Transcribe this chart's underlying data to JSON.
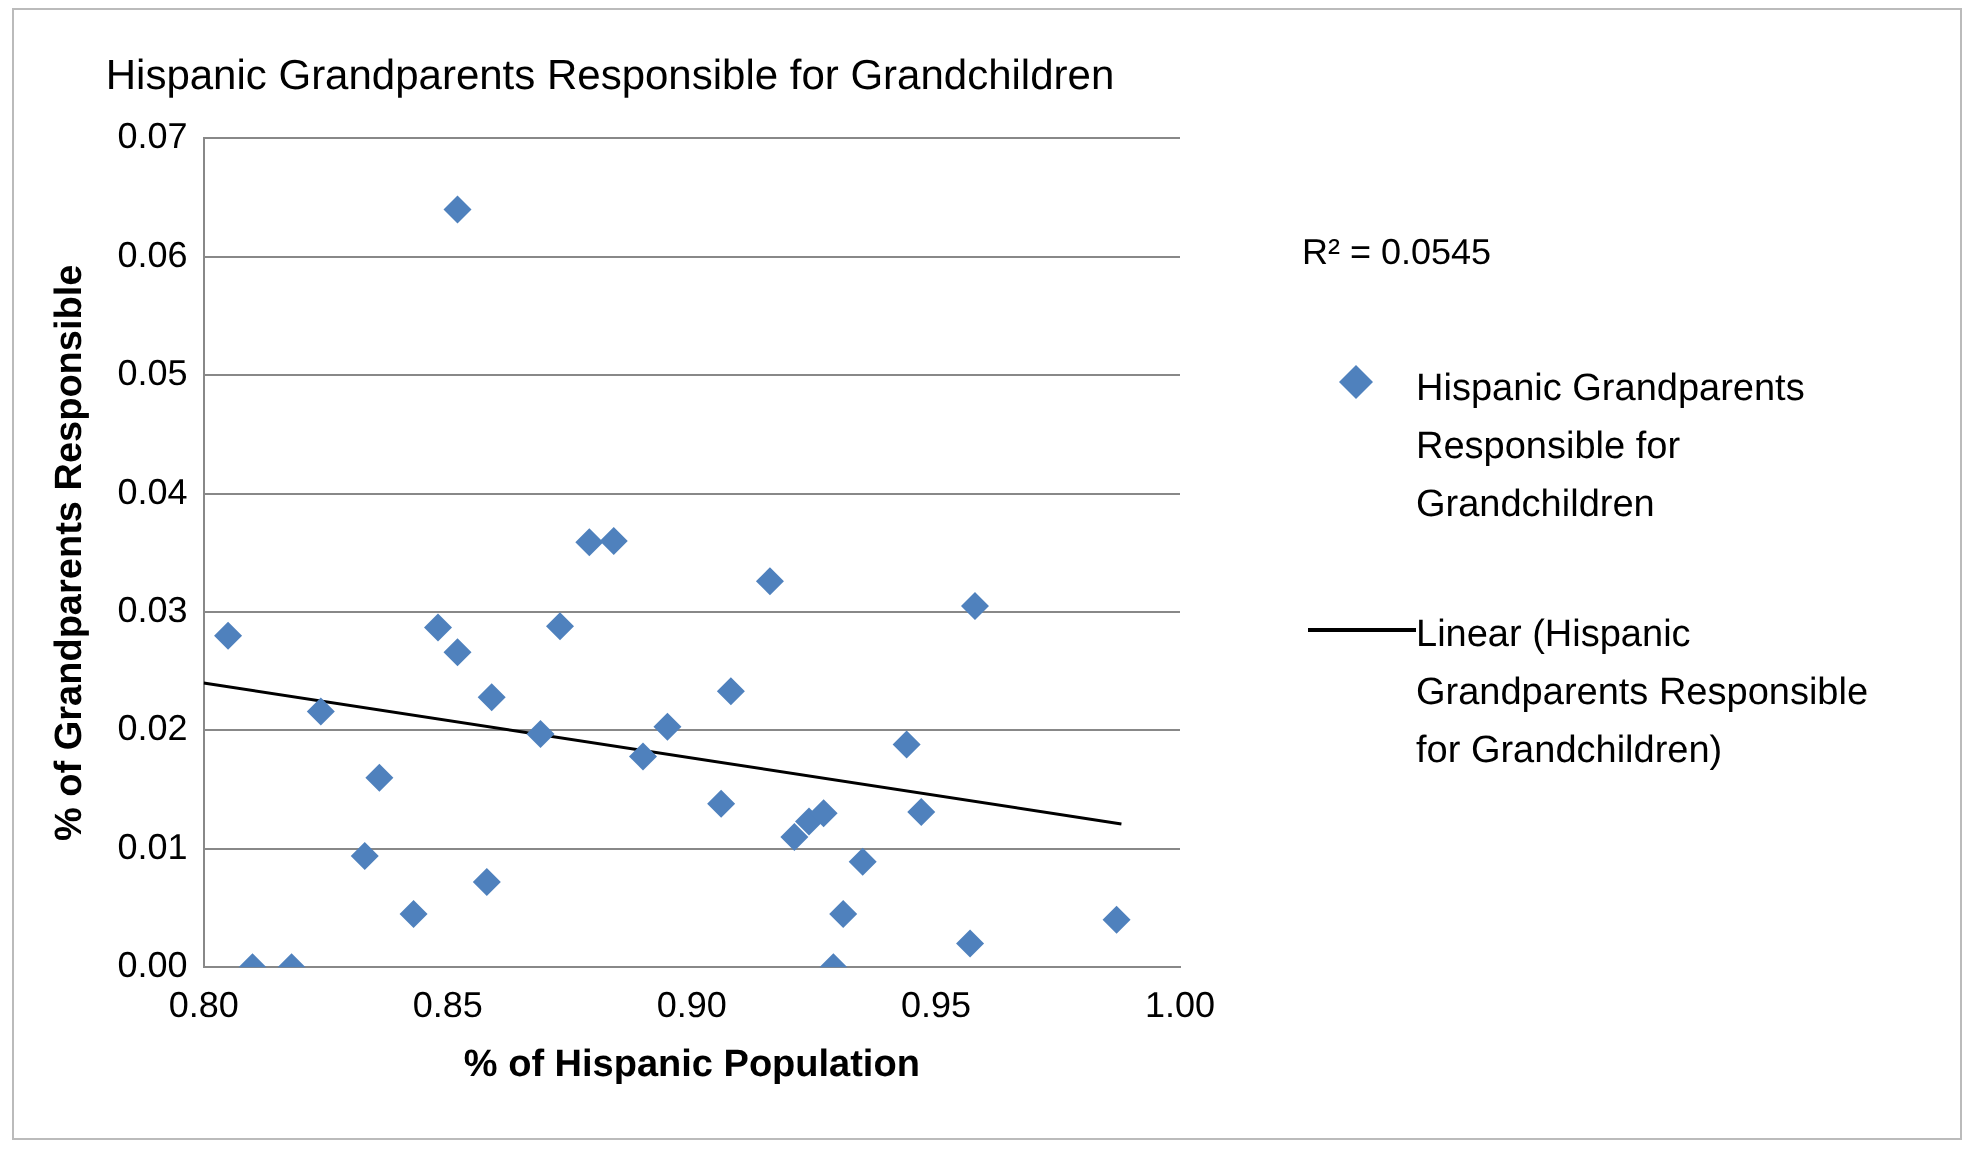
{
  "chart_data": {
    "type": "scatter",
    "title": "Hispanic Grandparents Responsible for Grandchildren",
    "xlabel": "% of Hispanic Population",
    "ylabel": "% of Grandparents Responsible",
    "xlim": [
      0.8,
      1.0
    ],
    "xticks": [
      {
        "value": 0.8,
        "label": "0.80"
      },
      {
        "value": 0.85,
        "label": "0.85"
      },
      {
        "value": 0.9,
        "label": "0.90"
      },
      {
        "value": 0.95,
        "label": "0.95"
      },
      {
        "value": 1.0,
        "label": "1.00"
      }
    ],
    "ylim": [
      0,
      0.07
    ],
    "yticks": [
      {
        "value": 0,
        "label": "0.00"
      },
      {
        "value": 0.01,
        "label": "0.01"
      },
      {
        "value": 0.02,
        "label": "0.02"
      },
      {
        "value": 0.03,
        "label": "0.03"
      },
      {
        "value": 0.04,
        "label": "0.04"
      },
      {
        "value": 0.05,
        "label": "0.05"
      },
      {
        "value": 0.06,
        "label": "0.06"
      },
      {
        "value": 0.07,
        "label": "0.07"
      }
    ],
    "grid": "y",
    "legend": "right",
    "annotations": [
      "R² = 0.0545"
    ],
    "series": [
      {
        "name": "Hispanic Grandparents Responsible for Grandchildren",
        "type": "scatter",
        "marker": "diamond",
        "color": "#4f81bd",
        "x": [
          0.805,
          0.81,
          0.818,
          0.824,
          0.836,
          0.833,
          0.843,
          0.848,
          0.852,
          0.852,
          0.859,
          0.858,
          0.869,
          0.873,
          0.879,
          0.884,
          0.89,
          0.895,
          0.906,
          0.908,
          0.916,
          0.921,
          0.924,
          0.927,
          0.929,
          0.931,
          0.935,
          0.944,
          0.947,
          0.957,
          0.958,
          0.987
        ],
        "values": [
          0.028,
          0.0,
          0.0,
          0.0216,
          0.016,
          0.0094,
          0.0045,
          0.0287,
          0.0266,
          0.064,
          0.0228,
          0.0072,
          0.0197,
          0.0288,
          0.0359,
          0.036,
          0.0178,
          0.0203,
          0.0138,
          0.0233,
          0.0326,
          0.011,
          0.0123,
          0.013,
          0.0,
          0.0045,
          0.0089,
          0.0188,
          0.0131,
          0.002,
          0.0305,
          0.004
        ]
      },
      {
        "name": "Linear (Hispanic Grandparents Responsible for Grandchildren)",
        "type": "line",
        "marker": "none",
        "line_style": "solid",
        "color": "#000000",
        "x": [
          0.8,
          0.988
        ],
        "values": [
          0.024,
          0.0121
        ]
      }
    ]
  }
}
